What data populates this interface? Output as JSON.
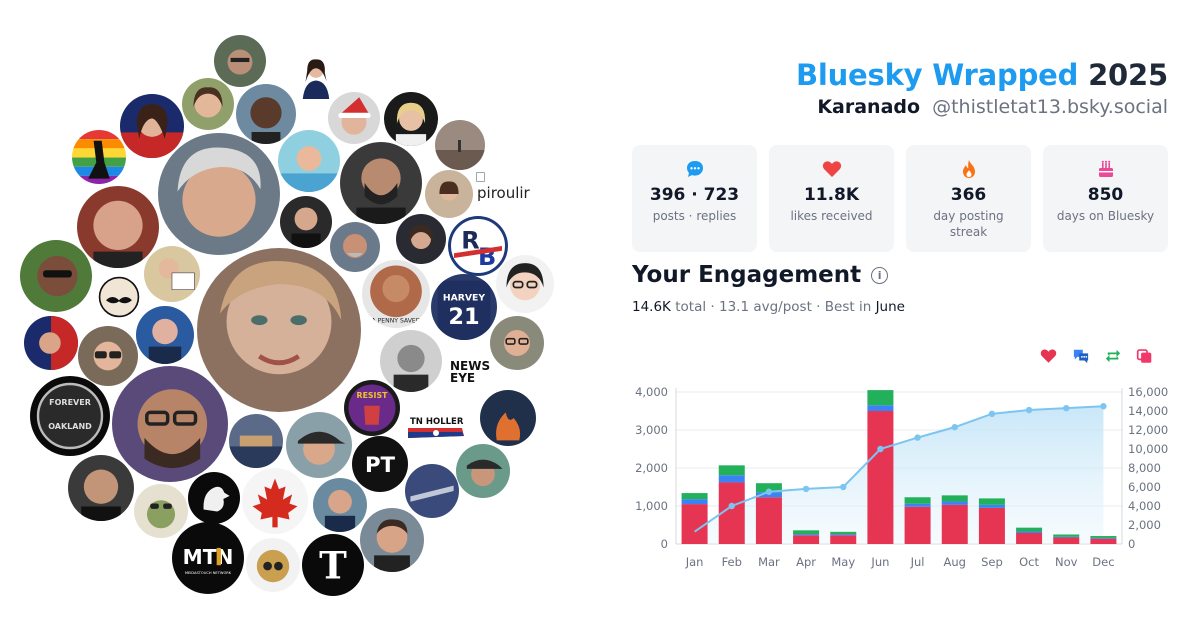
{
  "header": {
    "brand": "Bluesky Wrapped",
    "year": "2025",
    "display_name": "Karanado",
    "handle": "@thistletat13.bsky.social"
  },
  "stats": [
    {
      "icon": "chat-bubble-icon",
      "value": "396 · 723",
      "label": "posts · replies",
      "color": "#1d9bf0"
    },
    {
      "icon": "heart-icon",
      "value": "11.8K",
      "label": "likes received",
      "color": "#ef4444"
    },
    {
      "icon": "fire-icon",
      "value": "366",
      "label": "day posting streak",
      "color": "#f97316"
    },
    {
      "icon": "cake-icon",
      "value": "850",
      "label": "days on Bluesky",
      "color": "#ec4899"
    }
  ],
  "engagement": {
    "title": "Your Engagement",
    "total": "14.6K",
    "total_label": "total",
    "avg": "13.1 avg/post",
    "best_label": "Best in",
    "best_month": "June"
  },
  "avatar_cluster": {
    "broken_image_alt": "piroulir",
    "news_logo": "NEWS EYE",
    "tn_logo": "TN HOLLER",
    "penny_text": "A PENNY SAVED",
    "pt_logo": "PT",
    "mtn_logo": "MTN",
    "mtn_sub": "MEIDASTOUCH NETWORK",
    "resist_text": "RESIST",
    "rb_logo": "RB",
    "jersey": "HARVEY 21",
    "oakland": "FOREVER OAKLAND"
  },
  "chart_data": {
    "type": "bar",
    "categories": [
      "Jan",
      "Feb",
      "Mar",
      "Apr",
      "May",
      "Jun",
      "Jul",
      "Aug",
      "Sep",
      "Oct",
      "Nov",
      "Dec"
    ],
    "left_axis": {
      "ylim": [
        0,
        4000
      ],
      "ticks": [
        "0",
        "1,000",
        "2,000",
        "3,000",
        "4,000"
      ]
    },
    "right_axis": {
      "ylim": [
        0,
        16000
      ],
      "ticks": [
        "0",
        "2,000",
        "4,000",
        "6,000",
        "8,000",
        "10,000",
        "12,000",
        "14,000",
        "16,000"
      ]
    },
    "legend": [
      "heart-icon",
      "reply-icon",
      "repost-icon",
      "quote-icon"
    ],
    "colors": {
      "likes": "#e63553",
      "replies": "#3b82f6",
      "reposts": "#22b05a",
      "quotes": "#f0386b",
      "cumulative": "#7cc5f0"
    },
    "series": [
      {
        "values": [
          1050,
          1620,
          1230,
          230,
          230,
          3500,
          980,
          1030,
          950,
          290,
          170,
          140
        ]
      },
      {
        "values": [
          130,
          190,
          130,
          30,
          30,
          150,
          80,
          90,
          80,
          40,
          20,
          20
        ]
      },
      {
        "values": [
          160,
          260,
          240,
          100,
          60,
          400,
          170,
          160,
          170,
          100,
          60,
          50
        ]
      }
    ],
    "cumulative": [
      1300,
      4000,
      5500,
      5800,
      6000,
      10000,
      11200,
      12300,
      13700,
      14100,
      14300,
      14500
    ]
  }
}
